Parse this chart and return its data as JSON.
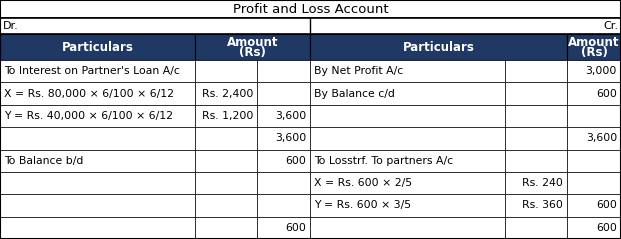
{
  "title": "Profit and Loss Account",
  "header_bg": "#1F3864",
  "header_fg": "#FFFFFF",
  "cell_bg": "#FFFFFF",
  "border_color": "#000000",
  "title_fontsize": 9.5,
  "header_fontsize": 8.5,
  "cell_fontsize": 7.8,
  "dr_cr_fontsize": 8,
  "rows": [
    [
      "To Interest on Partner's Loan A/c",
      "",
      "",
      "By Net Profit A/c",
      "",
      "3,000"
    ],
    [
      "X = Rs. 80,000 × 6/100 × 6/12",
      "Rs. 2,400",
      "",
      "By Balance c/d",
      "",
      "600"
    ],
    [
      "Y = Rs. 40,000 × 6/100 × 6/12",
      "Rs. 1,200",
      "3,600",
      "",
      "",
      ""
    ],
    [
      "",
      "",
      "3,600",
      "",
      "",
      "3,600"
    ],
    [
      "To Balance b/d",
      "",
      "600",
      "To Losstrf. To partners A/c",
      "",
      ""
    ],
    [
      "",
      "",
      "",
      "X = Rs. 600 × 2/5",
      "Rs. 240",
      ""
    ],
    [
      "",
      "",
      "",
      "Y = Rs. 600 × 3/5",
      "Rs. 360",
      "600"
    ],
    [
      "",
      "",
      "600",
      "",
      "",
      "600"
    ]
  ]
}
